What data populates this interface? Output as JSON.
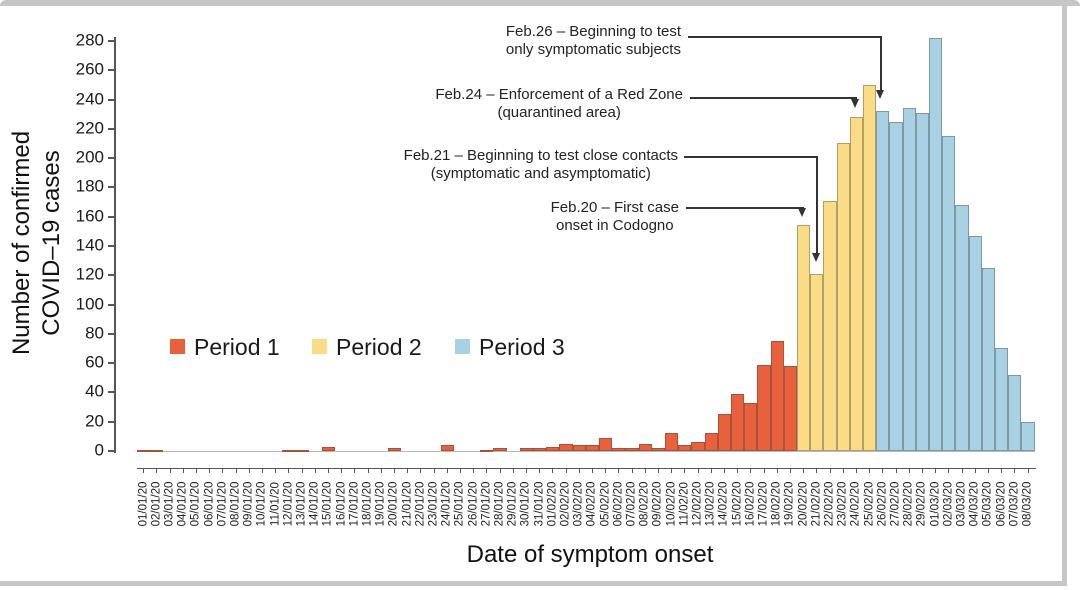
{
  "chart_data": {
    "type": "bar",
    "title": "",
    "xlabel": "Date of symptom onset",
    "ylabel_lines": [
      "Number of confirmed",
      "COVID–19 cases"
    ],
    "ylim": [
      0,
      280
    ],
    "ytick_step": 20,
    "grid": false,
    "legend_position": "middle-left",
    "categories": [
      "01/01/20",
      "02/01/20",
      "03/01/20",
      "04/01/20",
      "05/01/20",
      "06/01/20",
      "07/01/20",
      "08/01/20",
      "09/01/20",
      "10/01/20",
      "11/01/20",
      "12/01/20",
      "13/01/20",
      "14/01/20",
      "15/01/20",
      "16/01/20",
      "17/01/20",
      "18/01/20",
      "19/01/20",
      "20/01/20",
      "21/01/20",
      "22/01/20",
      "23/01/20",
      "24/01/20",
      "25/01/20",
      "26/01/20",
      "27/01/20",
      "28/01/20",
      "29/01/20",
      "30/01/20",
      "31/01/20",
      "01/02/20",
      "02/02/20",
      "03/02/20",
      "04/02/20",
      "05/02/20",
      "06/02/20",
      "07/02/20",
      "08/02/20",
      "09/02/20",
      "10/02/20",
      "11/02/20",
      "12/02/20",
      "13/02/20",
      "14/02/20",
      "15/02/20",
      "16/02/20",
      "17/02/20",
      "18/02/20",
      "19/02/20",
      "20/02/20",
      "21/02/20",
      "22/02/20",
      "23/02/20",
      "24/02/20",
      "25/02/20",
      "26/02/20",
      "27/02/20",
      "28/02/20",
      "29/02/20",
      "01/03/20",
      "02/03/20",
      "03/03/20",
      "04/03/20",
      "05/03/20",
      "06/03/20",
      "07/03/20",
      "08/03/20"
    ],
    "values": [
      1,
      1,
      0,
      0,
      0,
      0,
      0,
      0,
      0,
      0,
      0,
      1,
      1,
      0,
      3,
      0,
      0,
      0,
      0,
      2,
      0,
      0,
      0,
      4,
      0,
      0,
      1,
      2,
      0,
      2,
      2,
      3,
      5,
      4,
      4,
      9,
      2,
      2,
      5,
      2,
      12,
      4,
      6,
      12,
      25,
      39,
      33,
      59,
      75,
      58,
      154,
      121,
      171,
      210,
      228,
      250,
      232,
      225,
      234,
      231,
      282,
      215,
      168,
      147,
      125,
      70,
      52,
      20
    ],
    "periods": [
      {
        "name": "Period 1",
        "color": "#E8613C",
        "start": "01/01/20",
        "end": "19/02/20"
      },
      {
        "name": "Period 2",
        "color": "#F9DC85",
        "start": "20/02/20",
        "end": "25/02/20"
      },
      {
        "name": "Period 3",
        "color": "#A8D2E4",
        "start": "26/02/20",
        "end": "08/03/20"
      }
    ],
    "annotations": [
      {
        "lines": [
          "Feb.26 – Beginning to test",
          "only symptomatic subjects"
        ],
        "target_date": "26/02/20"
      },
      {
        "lines": [
          "Feb.24 – Enforcement of a Red Zone",
          "(quarantined area)"
        ],
        "target_date": "24/02/20"
      },
      {
        "lines": [
          "Feb.21 – Beginning to test close contacts",
          "(symptomatic and asymptomatic)"
        ],
        "target_date": "21/02/20"
      },
      {
        "lines": [
          "Feb.20 – First case",
          "onset in Codogno"
        ],
        "target_date": "20/02/20"
      }
    ]
  }
}
